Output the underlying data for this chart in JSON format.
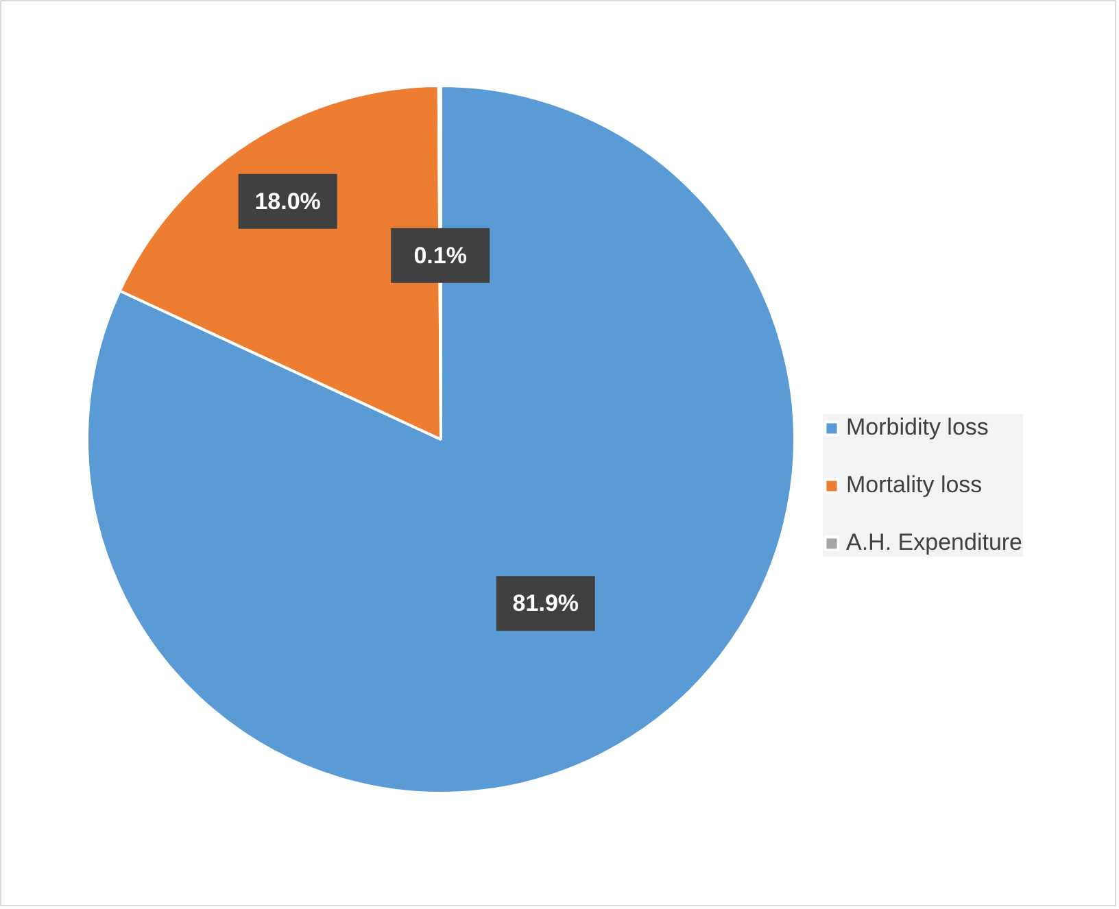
{
  "chart_data": {
    "type": "pie",
    "categories": [
      "Morbidity loss",
      "Mortality loss",
      "A.H. Expenditure"
    ],
    "values": [
      81.9,
      18.0,
      0.1
    ],
    "colors": [
      "#5b9bd5",
      "#ed7d31",
      "#a5a5a5"
    ],
    "value_labels": [
      "81.9%",
      "18.0%",
      "0.1%"
    ],
    "legend": "right"
  }
}
